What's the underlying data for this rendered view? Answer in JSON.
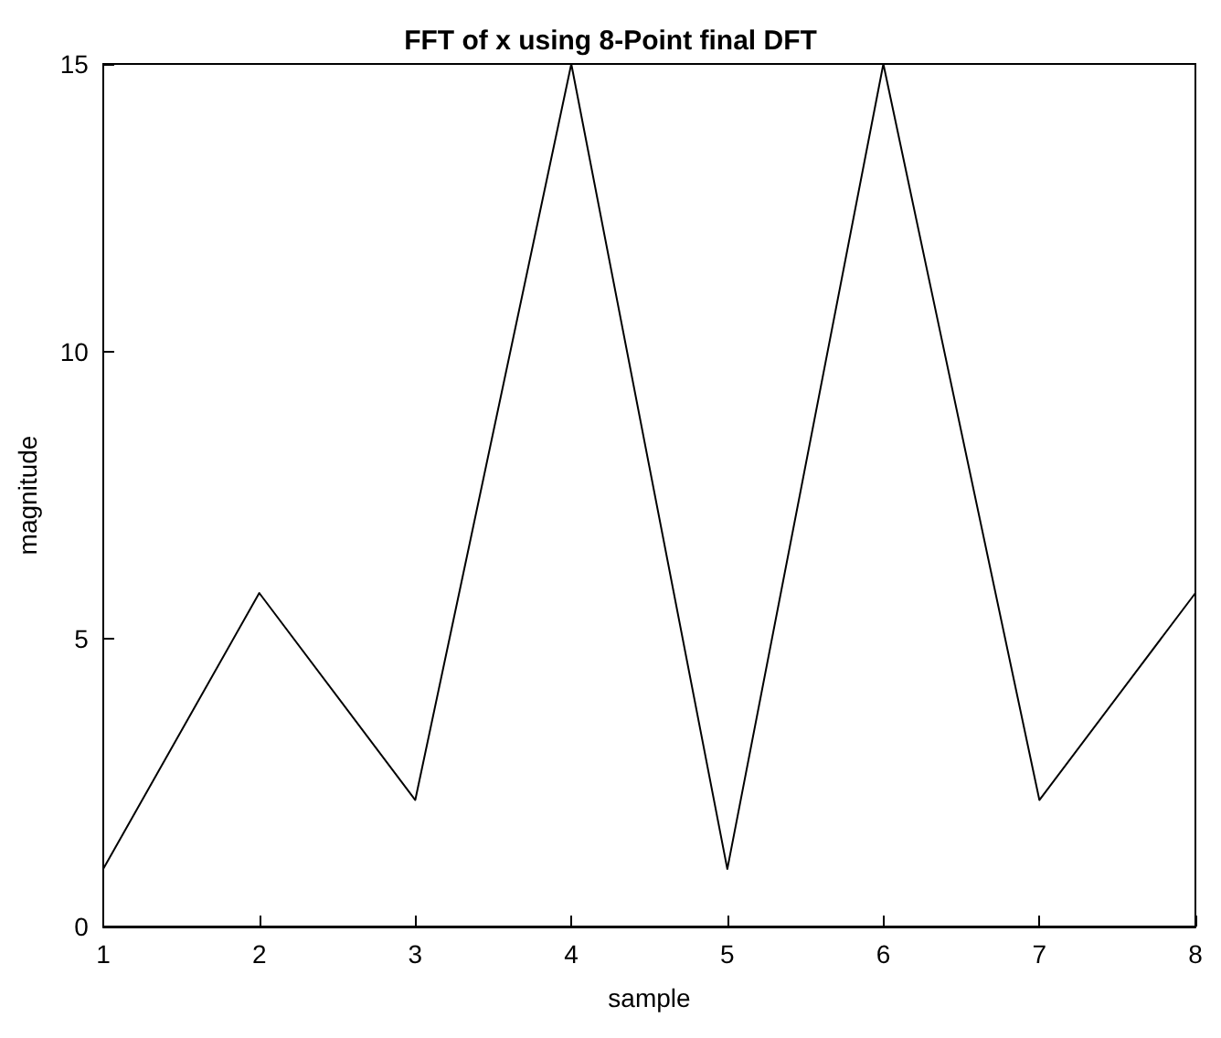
{
  "chart_data": {
    "type": "line",
    "title": "FFT of x using 8-Point final DFT",
    "xlabel": "sample",
    "ylabel": "magnitude",
    "x": [
      1,
      2,
      3,
      4,
      5,
      6,
      7,
      8
    ],
    "series": [
      {
        "color": "#000000",
        "values": [
          1,
          5.8,
          2.2,
          15,
          1,
          15,
          2.2,
          5.8
        ]
      }
    ],
    "xlim": [
      1,
      8
    ],
    "xticks": [
      1,
      2,
      3,
      4,
      5,
      6,
      7,
      8
    ],
    "ylim": [
      0,
      15
    ],
    "yticks": [
      0,
      5,
      10,
      15
    ],
    "grid": false,
    "marker": "none",
    "line_style": "solid"
  }
}
